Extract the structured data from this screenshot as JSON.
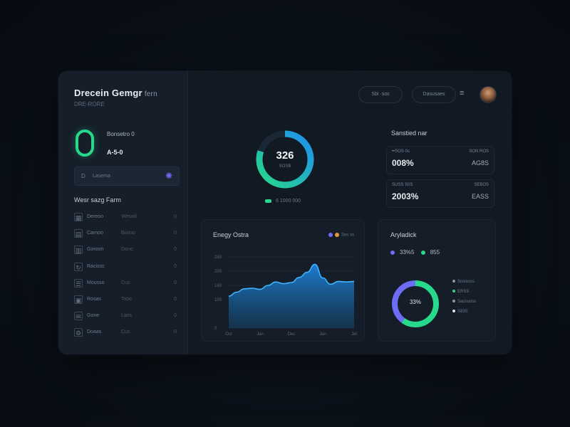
{
  "brand": {
    "title": "Drecein Gemgr",
    "suffix": "fern",
    "subtitle": "DRE-RORE"
  },
  "score": {
    "name": "Bonsetro 0",
    "value": "A-5-0"
  },
  "plan": {
    "icon_label": "D",
    "label": "Lasema",
    "icon": "spark-icon"
  },
  "nav": {
    "heading": "Wesr sazg Farm",
    "items": [
      {
        "label": "Dereoo",
        "mid": "Wesod",
        "count": "0",
        "icon": "grid-icon"
      },
      {
        "label": "Carnoo",
        "mid": "Bunso",
        "count": "0",
        "icon": "chart-icon"
      },
      {
        "label": "Goroon",
        "mid": "Dono",
        "count": "0",
        "icon": "file-icon"
      },
      {
        "label": "Racisss",
        "mid": "",
        "count": "0",
        "icon": "refresh-icon"
      },
      {
        "label": "Mousso",
        "mid": "Cus",
        "count": "0",
        "icon": "users-icon"
      },
      {
        "label": "Rosas",
        "mid": "Tsoo",
        "count": "0",
        "icon": "calendar-icon"
      },
      {
        "label": "Gone",
        "mid": "Lans",
        "count": "0",
        "icon": "mail-icon"
      },
      {
        "label": "Doaas",
        "mid": "Cus",
        "count": "0",
        "icon": "settings-icon"
      }
    ]
  },
  "header": {
    "pill1": "Sbi ·sos",
    "pill2": "Dasusaes",
    "settings_glyph": "≡"
  },
  "main_metric": {
    "value": "326",
    "sub": "SOSB",
    "legend": "6  1000 000",
    "percent": 80
  },
  "stats": {
    "title": "Sanstied nar",
    "cards": [
      {
        "label": "••SOS 0s",
        "value": "008%",
        "label2": "SON ROS",
        "value2": "AG8S"
      },
      {
        "label": "SUSS S0S",
        "value": "2003%",
        "label2": "SEBOS",
        "value2": "EASS"
      }
    ]
  },
  "colors": {
    "accent_green": "#27d98a",
    "accent_blue": "#1e8ff0",
    "accent_purple": "#6e6cf5",
    "orange": "#e39a3a"
  },
  "activity_chart": {
    "title": "Enegy Ostra",
    "legend": "Sos ss",
    "x_labels": [
      "Oct",
      "Jan",
      "Dec",
      "Jan",
      "Jel"
    ],
    "chart_data": {
      "type": "area",
      "x": [
        0,
        1,
        2,
        3,
        4,
        5,
        6,
        7,
        8,
        9,
        10,
        11,
        12,
        13,
        14,
        15,
        16
      ],
      "y": [
        112,
        126,
        138,
        140,
        136,
        150,
        162,
        156,
        160,
        178,
        196,
        224,
        176,
        154,
        164,
        162,
        164
      ],
      "yticks": [
        0,
        100,
        150,
        200,
        250
      ],
      "ytick_labels": [
        "0",
        "100",
        "150",
        "200",
        "250"
      ],
      "ylim": [
        0,
        250
      ]
    }
  },
  "breakdown": {
    "title": "Aryladick",
    "kpi1": "33%5",
    "kpi2": "855",
    "center": "33%",
    "green_share": 60,
    "purple_share": 40,
    "list": [
      {
        "label": "Snsisoss",
        "color": "#8b95a3"
      },
      {
        "label": "ERSS",
        "color": "#27d98a"
      },
      {
        "label": "Sausuoss",
        "color": "#8b95a3"
      },
      {
        "label": "S83S",
        "color": "#dfe5ec"
      }
    ]
  }
}
